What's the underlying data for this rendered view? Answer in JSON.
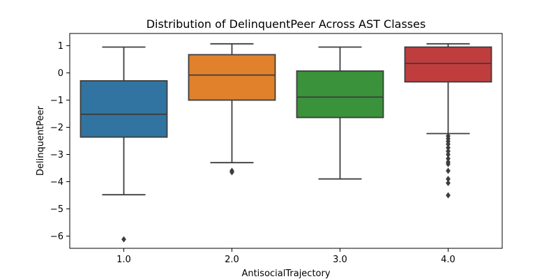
{
  "chart_data": {
    "type": "box",
    "title": "Distribution of DelinquentPeer Across AST Classes",
    "xlabel": "AntisocialTrajectory",
    "ylabel": "DelinquentPeer",
    "categories": [
      "1.0",
      "2.0",
      "3.0",
      "4.0"
    ],
    "ylim": [
      -6.45,
      1.45
    ],
    "yticks": [
      1,
      0,
      -1,
      -2,
      -3,
      -4,
      -5,
      -6
    ],
    "ytick_labels": [
      "1",
      "0",
      "−1",
      "−2",
      "−3",
      "−4",
      "−5",
      "−6"
    ],
    "grid": false,
    "legend": "none",
    "boxes": [
      {
        "category": "1.0",
        "color": "#3274a1",
        "whisker_low": -4.48,
        "q1": -2.36,
        "median": -1.52,
        "q3": -0.29,
        "whisker_high": 0.95,
        "outliers": [
          -6.12
        ]
      },
      {
        "category": "2.0",
        "color": "#e1812c",
        "whisker_low": -3.3,
        "q1": -1.0,
        "median": -0.08,
        "q3": 0.67,
        "whisker_high": 1.07,
        "outliers": [
          -3.6,
          -3.65
        ]
      },
      {
        "category": "3.0",
        "color": "#3a923a",
        "whisker_low": -3.9,
        "q1": -1.64,
        "median": -0.89,
        "q3": 0.07,
        "whisker_high": 0.95,
        "outliers": []
      },
      {
        "category": "4.0",
        "color": "#c03d3e",
        "whisker_low": -2.23,
        "q1": -0.33,
        "median": 0.35,
        "q3": 0.95,
        "whisker_high": 1.07,
        "outliers": [
          -2.32,
          -2.42,
          -2.52,
          -2.62,
          -2.75,
          -2.88,
          -3.0,
          -3.15,
          -3.28,
          -3.35,
          -3.6,
          -3.9,
          -4.05,
          -4.5
        ]
      }
    ]
  }
}
